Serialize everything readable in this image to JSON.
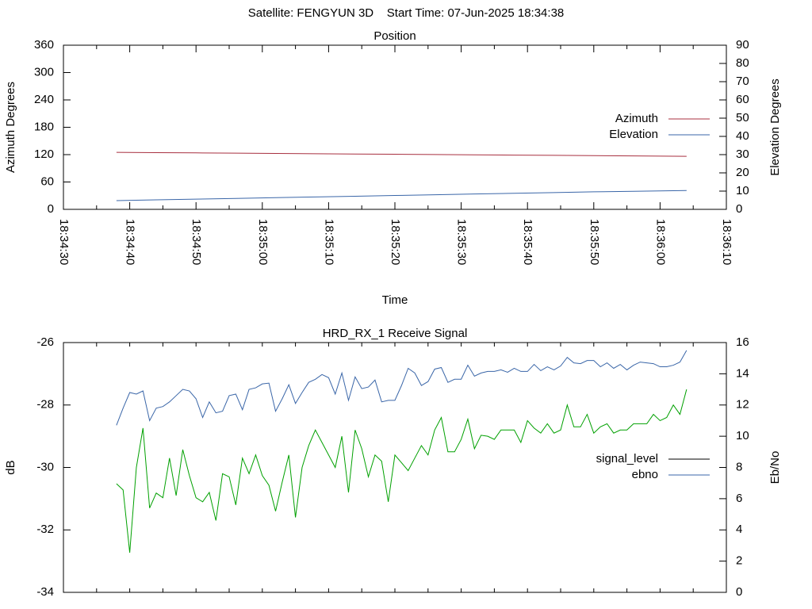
{
  "header": "Satellite: FENGYUN 3D    Start Time: 07-Jun-2025 18:34:38",
  "chart_data": [
    {
      "type": "line",
      "title": "Position",
      "xlabel": "Time",
      "ylabel": "Azimuth Degrees",
      "y2label": "Elevation Degrees",
      "xlim": [
        "18:34:30",
        "18:36:10"
      ],
      "xticks": [
        "18:34:30",
        {
          "value": "18:34:35",
          "label": null
        },
        "18:34:40",
        {
          "value": "18:34:45",
          "label": null
        },
        "18:34:50",
        {
          "value": "18:34:55",
          "label": null
        },
        "18:35:00",
        {
          "value": "18:35:05",
          "label": null
        },
        "18:35:10",
        {
          "value": "18:35:15",
          "label": null
        },
        "18:35:20",
        {
          "value": "18:35:25",
          "label": null
        },
        "18:35:30",
        {
          "value": "18:35:35",
          "label": null
        },
        "18:35:40",
        {
          "value": "18:35:45",
          "label": null
        },
        "18:35:50",
        {
          "value": "18:35:55",
          "label": null
        },
        "18:36:00",
        {
          "value": "18:36:05",
          "label": null
        },
        "18:36:10"
      ],
      "ylim": [
        0,
        360
      ],
      "yticks": [
        0,
        60,
        120,
        180,
        240,
        300,
        360
      ],
      "y2lim": [
        0,
        90
      ],
      "y2ticks": [
        0,
        10,
        20,
        30,
        40,
        50,
        60,
        70,
        80,
        90
      ],
      "legend": "right",
      "x": [
        "18:34:38",
        "18:34:44",
        "18:34:50",
        "18:34:56",
        "18:35:02",
        "18:35:08",
        "18:35:14",
        "18:35:20",
        "18:35:26",
        "18:35:32",
        "18:35:38",
        "18:35:44",
        "18:35:50",
        "18:35:56",
        "18:36:02",
        "18:36:04"
      ],
      "series": [
        {
          "name": "Azimuth",
          "color": "#a83040",
          "values": [
            125.0,
            124.4,
            123.8,
            123.2,
            122.6,
            122.0,
            121.4,
            120.8,
            120.2,
            119.6,
            119.0,
            118.4,
            117.8,
            117.2,
            116.6,
            116.4
          ]
        },
        {
          "name": "Elevation",
          "color": "#3a66a8",
          "axis": "y2",
          "values": [
            4.8,
            5.2,
            5.6,
            6.0,
            6.4,
            6.8,
            7.2,
            7.6,
            8.0,
            8.4,
            8.8,
            9.2,
            9.6,
            9.9,
            10.2,
            10.3
          ]
        }
      ]
    },
    {
      "type": "line",
      "title": "HRD_RX_1 Receive Signal",
      "ylabel": "dB",
      "y2label": "Eb/No",
      "xlim": [
        "18:34:30",
        "18:36:10"
      ],
      "xticks": [
        {
          "value": "18:34:30",
          "label": null
        },
        {
          "value": "18:34:35",
          "label": null
        },
        {
          "value": "18:34:40",
          "label": null
        },
        {
          "value": "18:34:45",
          "label": null
        },
        {
          "value": "18:34:50",
          "label": null
        },
        {
          "value": "18:34:55",
          "label": null
        },
        {
          "value": "18:35:00",
          "label": null
        },
        {
          "value": "18:35:05",
          "label": null
        },
        {
          "value": "18:35:10",
          "label": null
        },
        {
          "value": "18:35:15",
          "label": null
        },
        {
          "value": "18:35:20",
          "label": null
        },
        {
          "value": "18:35:25",
          "label": null
        },
        {
          "value": "18:35:30",
          "label": null
        },
        {
          "value": "18:35:35",
          "label": null
        },
        {
          "value": "18:35:40",
          "label": null
        },
        {
          "value": "18:35:45",
          "label": null
        },
        {
          "value": "18:35:50",
          "label": null
        },
        {
          "value": "18:35:55",
          "label": null
        },
        {
          "value": "18:36:00",
          "label": null
        },
        {
          "value": "18:36:05",
          "label": null
        },
        {
          "value": "18:36:10",
          "label": null
        }
      ],
      "ylim": [
        -34,
        -26
      ],
      "yticks": [
        -34,
        -32,
        -30,
        -28,
        -26
      ],
      "y2lim": [
        0,
        16
      ],
      "y2ticks": [
        0,
        2,
        4,
        6,
        8,
        10,
        12,
        14,
        16
      ],
      "legend": "right",
      "x": [
        "18:34:38",
        "18:34:39",
        "18:34:40",
        "18:34:41",
        "18:34:42",
        "18:34:43",
        "18:34:44",
        "18:34:45",
        "18:34:46",
        "18:34:47",
        "18:34:48",
        "18:34:49",
        "18:34:50",
        "18:34:51",
        "18:34:52",
        "18:34:53",
        "18:34:54",
        "18:34:55",
        "18:34:56",
        "18:34:57",
        "18:34:58",
        "18:34:59",
        "18:35:00",
        "18:35:01",
        "18:35:02",
        "18:35:03",
        "18:35:04",
        "18:35:05",
        "18:35:06",
        "18:35:07",
        "18:35:08",
        "18:35:09",
        "18:35:10",
        "18:35:11",
        "18:35:12",
        "18:35:13",
        "18:35:14",
        "18:35:15",
        "18:35:16",
        "18:35:17",
        "18:35:18",
        "18:35:19",
        "18:35:20",
        "18:35:21",
        "18:35:22",
        "18:35:23",
        "18:35:24",
        "18:35:25",
        "18:35:26",
        "18:35:27",
        "18:35:28",
        "18:35:29",
        "18:35:30",
        "18:35:31",
        "18:35:32",
        "18:35:33",
        "18:35:34",
        "18:35:35",
        "18:35:36",
        "18:35:37",
        "18:35:38",
        "18:35:39",
        "18:35:40",
        "18:35:41",
        "18:35:42",
        "18:35:43",
        "18:35:44",
        "18:35:45",
        "18:35:46",
        "18:35:47",
        "18:35:48",
        "18:35:49",
        "18:35:50",
        "18:35:51",
        "18:35:52",
        "18:35:53",
        "18:35:54",
        "18:35:55",
        "18:35:56",
        "18:35:57",
        "18:35:58",
        "18:35:59",
        "18:36:00",
        "18:36:01",
        "18:36:02",
        "18:36:03",
        "18:36:04"
      ],
      "series": [
        {
          "name": "signal_level",
          "color": "#00a000",
          "legend_color": "#000000",
          "values": [
            -30.52,
            -30.72,
            -32.73,
            -30.0,
            -28.74,
            -31.3,
            -30.82,
            -30.97,
            -29.7,
            -30.9,
            -29.43,
            -30.26,
            -30.97,
            -31.1,
            -30.8,
            -31.7,
            -30.2,
            -30.3,
            -31.2,
            -29.7,
            -30.2,
            -29.6,
            -30.26,
            -30.57,
            -31.4,
            -30.47,
            -29.6,
            -31.6,
            -30.0,
            -29.3,
            -28.8,
            -29.2,
            -29.6,
            -30.0,
            -29.0,
            -30.8,
            -28.8,
            -29.4,
            -30.3,
            -29.6,
            -29.8,
            -31.1,
            -29.6,
            -29.85,
            -30.1,
            -29.7,
            -29.3,
            -29.6,
            -28.8,
            -28.4,
            -29.5,
            -29.5,
            -29.1,
            -28.45,
            -29.4,
            -28.97,
            -29.0,
            -29.1,
            -28.8,
            -28.8,
            -28.8,
            -29.2,
            -28.5,
            -28.74,
            -28.9,
            -28.6,
            -28.9,
            -28.8,
            -28.0,
            -28.7,
            -28.7,
            -28.3,
            -28.9,
            -28.7,
            -28.6,
            -28.9,
            -28.8,
            -28.8,
            -28.6,
            -28.6,
            -28.6,
            -28.3,
            -28.5,
            -28.4,
            -28.0,
            -28.3,
            -27.5
          ]
        },
        {
          "name": "ebno",
          "color": "#3a66a8",
          "axis": "y2",
          "values": [
            10.7,
            11.8,
            12.8,
            12.7,
            12.9,
            11.0,
            11.8,
            11.9,
            12.2,
            12.6,
            13.0,
            12.9,
            12.4,
            11.2,
            12.2,
            11.5,
            11.6,
            12.6,
            12.7,
            11.7,
            13.0,
            13.1,
            13.35,
            13.4,
            11.6,
            12.4,
            13.3,
            12.1,
            12.8,
            13.45,
            13.65,
            13.95,
            13.75,
            12.7,
            14.05,
            12.3,
            13.8,
            13.05,
            13.15,
            13.6,
            12.2,
            12.3,
            12.3,
            13.25,
            14.35,
            14.05,
            13.25,
            13.5,
            14.3,
            14.4,
            13.45,
            13.65,
            13.65,
            14.55,
            13.85,
            14.05,
            14.15,
            14.15,
            14.25,
            14.1,
            14.35,
            14.15,
            14.15,
            14.6,
            14.2,
            14.45,
            14.25,
            14.5,
            15.05,
            14.7,
            14.65,
            14.85,
            14.85,
            14.45,
            14.7,
            14.35,
            14.6,
            14.25,
            14.55,
            14.75,
            14.7,
            14.65,
            14.45,
            14.45,
            14.55,
            14.75,
            15.5
          ]
        }
      ]
    }
  ]
}
